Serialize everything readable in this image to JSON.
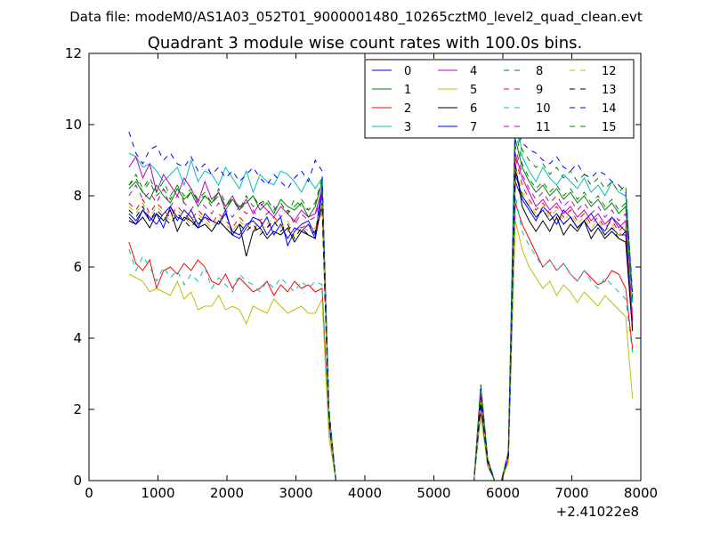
{
  "chart_data": {
    "type": "line",
    "suptitle": "Data file: modeM0/AS1A03_052T01_9000001480_10265cztM0_level2_quad_clean.evt",
    "title": "Quadrant 3 module wise count rates with 100.0s bins.",
    "xlabel": "",
    "ylabel": "",
    "xlim": [
      0,
      8000
    ],
    "ylim": [
      0,
      12
    ],
    "x_offset_label": "+2.41022e8",
    "x_ticks": [
      0,
      1000,
      2000,
      3000,
      4000,
      5000,
      6000,
      7000,
      8000
    ],
    "y_ticks": [
      0,
      2,
      4,
      6,
      8,
      10,
      12
    ],
    "grid": false,
    "legend": {
      "placement": "top-right",
      "columns": 4
    },
    "x": [
      580,
      680,
      780,
      880,
      980,
      1080,
      1180,
      1280,
      1380,
      1480,
      1580,
      1680,
      1780,
      1880,
      1980,
      2080,
      2180,
      2280,
      2380,
      2480,
      2580,
      2680,
      2780,
      2880,
      2980,
      3080,
      3180,
      3280,
      3380,
      3480,
      3580,
      5580,
      5680,
      5780,
      5880,
      5980,
      6080,
      6180,
      6280,
      6380,
      6480,
      6580,
      6680,
      6780,
      6880,
      6980,
      7080,
      7180,
      7280,
      7380,
      7480,
      7580,
      7680,
      7780,
      7880
    ],
    "series": [
      {
        "name": "0",
        "color": "#0000ff",
        "dash": "solid",
        "values": [
          7.5,
          7.3,
          7.6,
          7.4,
          7.2,
          7.5,
          7.7,
          7.3,
          7.6,
          7.4,
          7.1,
          7.5,
          7.3,
          7.2,
          7.6,
          6.9,
          6.8,
          7.1,
          7.4,
          7.3,
          6.9,
          7.2,
          7.4,
          6.6,
          7.0,
          7.2,
          7.3,
          6.9,
          8.3,
          1.8,
          0.0,
          0.0,
          2.2,
          0.5,
          0.0,
          0.0,
          0.7,
          8.4,
          7.9,
          7.6,
          7.3,
          7.7,
          7.5,
          7.2,
          7.6,
          7.4,
          7.1,
          7.3,
          7.5,
          7.2,
          7.0,
          7.4,
          7.2,
          7.0,
          4.5
        ]
      },
      {
        "name": "1",
        "color": "#008000",
        "dash": "solid",
        "values": [
          8.2,
          8.4,
          8.1,
          7.9,
          8.3,
          8.0,
          7.8,
          8.2,
          7.9,
          8.1,
          7.7,
          8.0,
          7.8,
          8.1,
          7.6,
          7.9,
          7.7,
          7.8,
          8.0,
          7.6,
          7.8,
          7.5,
          7.9,
          7.7,
          7.6,
          7.8,
          7.4,
          7.7,
          8.4,
          1.9,
          0.0,
          0.0,
          2.6,
          0.6,
          0.0,
          0.0,
          0.8,
          9.6,
          8.8,
          8.4,
          8.1,
          8.3,
          8.0,
          8.2,
          7.9,
          8.1,
          7.8,
          8.0,
          7.7,
          7.9,
          7.6,
          7.8,
          7.5,
          7.7,
          5.0
        ]
      },
      {
        "name": "2",
        "color": "#ff0000",
        "dash": "solid",
        "values": [
          6.7,
          6.1,
          5.9,
          6.2,
          5.4,
          5.9,
          6.0,
          5.8,
          6.1,
          5.9,
          6.2,
          6.0,
          5.6,
          5.5,
          5.8,
          5.4,
          5.7,
          5.5,
          5.3,
          5.4,
          5.6,
          5.2,
          5.5,
          5.3,
          5.6,
          5.4,
          5.5,
          5.3,
          5.4,
          1.5,
          0.0,
          0.0,
          1.9,
          0.4,
          0.0,
          0.0,
          0.6,
          7.8,
          7.2,
          6.8,
          6.4,
          6.0,
          6.2,
          5.9,
          6.1,
          5.8,
          5.6,
          5.9,
          5.7,
          5.5,
          5.6,
          5.9,
          5.8,
          5.4,
          3.7
        ]
      },
      {
        "name": "3",
        "color": "#00bfbf",
        "dash": "solid",
        "values": [
          9.2,
          9.1,
          8.8,
          8.9,
          8.7,
          8.4,
          8.6,
          8.8,
          8.3,
          9.0,
          8.4,
          8.7,
          8.6,
          8.3,
          8.8,
          8.5,
          8.2,
          8.7,
          8.1,
          8.6,
          8.4,
          8.3,
          8.7,
          8.6,
          8.4,
          8.1,
          8.5,
          8.2,
          8.5,
          1.9,
          0.0,
          0.0,
          2.5,
          0.5,
          0.0,
          0.0,
          0.8,
          10.7,
          9.1,
          8.7,
          8.4,
          8.8,
          8.5,
          8.3,
          8.6,
          8.4,
          8.2,
          8.5,
          8.1,
          8.3,
          8.0,
          8.4,
          8.1,
          8.0,
          5.0
        ]
      },
      {
        "name": "4",
        "color": "#bf00bf",
        "dash": "solid",
        "values": [
          8.8,
          9.1,
          8.5,
          8.9,
          8.1,
          8.6,
          8.3,
          8.0,
          8.5,
          8.2,
          7.8,
          8.4,
          7.9,
          8.1,
          7.7,
          8.0,
          7.6,
          7.9,
          7.5,
          7.8,
          7.6,
          7.4,
          7.7,
          7.5,
          7.3,
          7.6,
          7.4,
          7.5,
          8.2,
          1.7,
          0.0,
          0.0,
          2.3,
          0.5,
          0.0,
          0.0,
          0.7,
          9.2,
          8.5,
          8.1,
          7.7,
          7.9,
          7.6,
          7.8,
          7.5,
          7.7,
          7.4,
          7.6,
          7.3,
          7.5,
          7.2,
          7.4,
          7.1,
          7.3,
          4.5
        ]
      },
      {
        "name": "5",
        "color": "#bfbf00",
        "dash": "solid",
        "values": [
          5.8,
          5.7,
          5.6,
          5.3,
          5.4,
          5.3,
          5.2,
          5.6,
          5.1,
          5.3,
          4.8,
          4.9,
          4.9,
          5.2,
          4.8,
          4.9,
          4.8,
          4.4,
          4.9,
          4.8,
          4.7,
          5.1,
          4.9,
          4.7,
          4.8,
          4.9,
          4.7,
          4.7,
          5.1,
          1.2,
          0.0,
          0.0,
          1.8,
          0.4,
          0.0,
          0.0,
          0.5,
          7.3,
          6.5,
          6.0,
          5.7,
          5.4,
          5.6,
          5.2,
          5.5,
          5.3,
          5.0,
          5.3,
          5.1,
          4.9,
          5.2,
          5.0,
          4.8,
          4.6,
          2.3
        ]
      },
      {
        "name": "6",
        "color": "#000000",
        "dash": "solid",
        "values": [
          7.3,
          7.2,
          7.4,
          7.1,
          7.5,
          7.3,
          7.6,
          7.0,
          7.4,
          7.3,
          7.1,
          7.2,
          7.0,
          7.3,
          7.1,
          6.9,
          7.2,
          6.3,
          7.0,
          7.1,
          6.8,
          7.0,
          6.9,
          7.1,
          6.7,
          7.0,
          6.9,
          6.8,
          7.8,
          1.7,
          0.0,
          0.0,
          2.1,
          0.5,
          0.0,
          0.0,
          0.7,
          8.9,
          7.7,
          7.3,
          7.0,
          7.3,
          7.0,
          7.4,
          6.9,
          7.2,
          7.0,
          7.3,
          6.8,
          7.1,
          6.8,
          7.0,
          6.8,
          6.7,
          4.2
        ]
      },
      {
        "name": "7",
        "color": "#0000ff",
        "dash": "solid",
        "values": [
          7.4,
          7.2,
          7.6,
          7.3,
          7.5,
          7.1,
          7.7,
          7.4,
          7.3,
          7.6,
          7.2,
          7.4,
          7.3,
          7.2,
          7.5,
          7.0,
          6.9,
          7.2,
          7.3,
          7.1,
          7.4,
          6.9,
          7.2,
          6.8,
          7.1,
          7.0,
          7.2,
          6.8,
          8.1,
          1.7,
          0.0,
          0.0,
          2.2,
          0.5,
          0.0,
          0.0,
          0.7,
          8.6,
          8.0,
          7.7,
          7.4,
          7.6,
          7.3,
          7.5,
          7.2,
          7.4,
          7.1,
          7.3,
          7.0,
          7.2,
          6.9,
          7.1,
          6.9,
          6.9,
          4.3
        ]
      },
      {
        "name": "8",
        "color": "#008000",
        "dash": "dashed",
        "values": [
          8.3,
          8.5,
          8.1,
          8.4,
          8.0,
          8.2,
          7.9,
          8.3,
          7.8,
          8.1,
          7.9,
          8.0,
          7.7,
          8.2,
          7.8,
          7.9,
          7.6,
          8.0,
          7.7,
          7.8,
          7.9,
          7.6,
          7.8,
          7.5,
          7.9,
          7.7,
          7.6,
          7.8,
          8.5,
          1.9,
          0.0,
          0.0,
          2.7,
          0.6,
          0.0,
          0.0,
          0.8,
          9.9,
          8.9,
          8.5,
          8.2,
          8.4,
          8.1,
          8.3,
          8.0,
          8.2,
          7.9,
          8.1,
          7.8,
          8.0,
          7.7,
          7.9,
          7.6,
          7.8,
          5.1
        ]
      },
      {
        "name": "9",
        "color": "#ff0000",
        "dash": "dashed",
        "values": [
          7.8,
          7.6,
          7.9,
          7.5,
          7.8,
          7.6,
          7.4,
          7.7,
          7.5,
          7.3,
          7.6,
          7.4,
          7.2,
          7.5,
          7.3,
          7.1,
          7.4,
          7.2,
          7.0,
          7.3,
          7.1,
          7.4,
          7.2,
          7.0,
          7.3,
          7.1,
          7.2,
          7.0,
          7.6,
          1.6,
          0.0,
          0.0,
          2.3,
          0.5,
          0.0,
          0.0,
          0.7,
          9.1,
          8.3,
          7.9,
          7.6,
          7.8,
          7.5,
          7.7,
          7.4,
          7.6,
          7.3,
          7.5,
          7.2,
          7.4,
          7.1,
          7.3,
          7.0,
          7.2,
          4.4
        ]
      },
      {
        "name": "10",
        "color": "#00bfbf",
        "dash": "dashed",
        "values": [
          6.5,
          5.9,
          6.3,
          6.0,
          5.6,
          6.0,
          5.7,
          5.9,
          5.5,
          5.8,
          5.6,
          6.0,
          5.4,
          5.7,
          5.5,
          5.3,
          5.8,
          5.6,
          5.5,
          5.3,
          5.6,
          5.4,
          5.7,
          5.5,
          5.3,
          5.6,
          5.4,
          5.6,
          5.5,
          1.5,
          0.0,
          0.0,
          2.0,
          0.4,
          0.0,
          0.0,
          0.6,
          8.0,
          7.0,
          6.6,
          6.3,
          6.0,
          6.2,
          5.9,
          6.1,
          5.8,
          5.6,
          5.9,
          5.6,
          5.4,
          5.7,
          5.5,
          5.3,
          5.1,
          3.6
        ]
      },
      {
        "name": "11",
        "color": "#bf00bf",
        "dash": "dashed",
        "values": [
          8.0,
          8.3,
          7.9,
          8.1,
          7.8,
          8.2,
          7.7,
          8.0,
          7.8,
          7.6,
          7.9,
          7.7,
          7.5,
          7.8,
          7.6,
          7.4,
          7.7,
          7.5,
          7.6,
          7.3,
          7.5,
          7.7,
          7.4,
          7.6,
          7.2,
          7.5,
          7.3,
          7.4,
          8.1,
          1.8,
          0.0,
          0.0,
          2.4,
          0.5,
          0.0,
          0.0,
          0.7,
          9.4,
          8.6,
          8.2,
          7.9,
          8.1,
          7.8,
          8.0,
          7.7,
          7.9,
          7.6,
          7.8,
          7.5,
          7.7,
          7.4,
          7.6,
          7.3,
          7.5,
          4.6
        ]
      },
      {
        "name": "12",
        "color": "#bfbf00",
        "dash": "dashed",
        "values": [
          7.7,
          7.5,
          7.8,
          7.4,
          7.7,
          7.5,
          7.3,
          7.6,
          7.4,
          7.2,
          7.5,
          7.3,
          7.1,
          7.4,
          7.2,
          7.0,
          7.3,
          7.1,
          7.3,
          7.0,
          7.2,
          7.4,
          7.1,
          7.3,
          6.9,
          7.2,
          7.0,
          7.1,
          7.8,
          1.7,
          0.0,
          0.0,
          2.2,
          0.5,
          0.0,
          0.0,
          0.7,
          8.8,
          8.1,
          7.8,
          7.5,
          7.7,
          7.4,
          7.6,
          7.3,
          7.5,
          7.2,
          7.4,
          7.1,
          7.3,
          7.0,
          7.2,
          6.9,
          7.1,
          4.3
        ]
      },
      {
        "name": "13",
        "color": "#000000",
        "dash": "dashed",
        "values": [
          7.6,
          7.4,
          7.7,
          7.3,
          7.6,
          7.4,
          7.2,
          7.5,
          7.3,
          7.1,
          7.4,
          7.2,
          7.0,
          7.3,
          7.1,
          6.9,
          7.2,
          7.0,
          7.2,
          6.9,
          7.1,
          7.3,
          7.0,
          7.2,
          6.8,
          7.1,
          6.9,
          7.0,
          7.7,
          1.7,
          0.0,
          0.0,
          2.2,
          0.5,
          0.0,
          0.0,
          0.7,
          8.7,
          8.0,
          7.7,
          7.4,
          7.6,
          7.3,
          7.5,
          7.2,
          7.4,
          7.1,
          7.3,
          7.0,
          7.2,
          6.9,
          7.1,
          6.8,
          7.0,
          4.2
        ]
      },
      {
        "name": "14",
        "color": "#0000ff",
        "dash": "dashed",
        "values": [
          9.8,
          9.2,
          8.9,
          9.3,
          9.4,
          9.0,
          9.2,
          8.9,
          8.8,
          9.1,
          8.7,
          8.9,
          8.6,
          8.8,
          8.5,
          8.7,
          8.4,
          8.6,
          8.8,
          8.5,
          8.3,
          8.6,
          8.4,
          8.2,
          8.5,
          8.7,
          8.4,
          9.0,
          8.7,
          2.0,
          0.0,
          0.0,
          2.6,
          0.6,
          0.0,
          0.0,
          0.8,
          10.0,
          9.5,
          9.3,
          9.2,
          9.0,
          8.9,
          9.1,
          8.8,
          8.7,
          8.9,
          8.6,
          8.5,
          8.7,
          8.6,
          8.4,
          8.3,
          8.1,
          5.3
        ]
      },
      {
        "name": "15",
        "color": "#008000",
        "dash": "dashed",
        "values": [
          8.3,
          8.6,
          8.2,
          8.5,
          8.1,
          8.4,
          8.0,
          8.3,
          8.0,
          8.2,
          7.9,
          8.1,
          7.8,
          8.0,
          7.7,
          7.9,
          7.6,
          7.8,
          8.0,
          7.7,
          7.9,
          7.6,
          7.8,
          7.5,
          7.7,
          7.9,
          7.6,
          7.8,
          8.4,
          1.9,
          0.0,
          0.0,
          2.7,
          0.6,
          0.0,
          0.0,
          0.8,
          9.9,
          9.3,
          9.0,
          8.8,
          8.9,
          8.6,
          8.8,
          8.5,
          8.7,
          8.4,
          8.6,
          8.3,
          8.5,
          8.2,
          8.4,
          8.1,
          8.3,
          5.2
        ]
      }
    ]
  }
}
